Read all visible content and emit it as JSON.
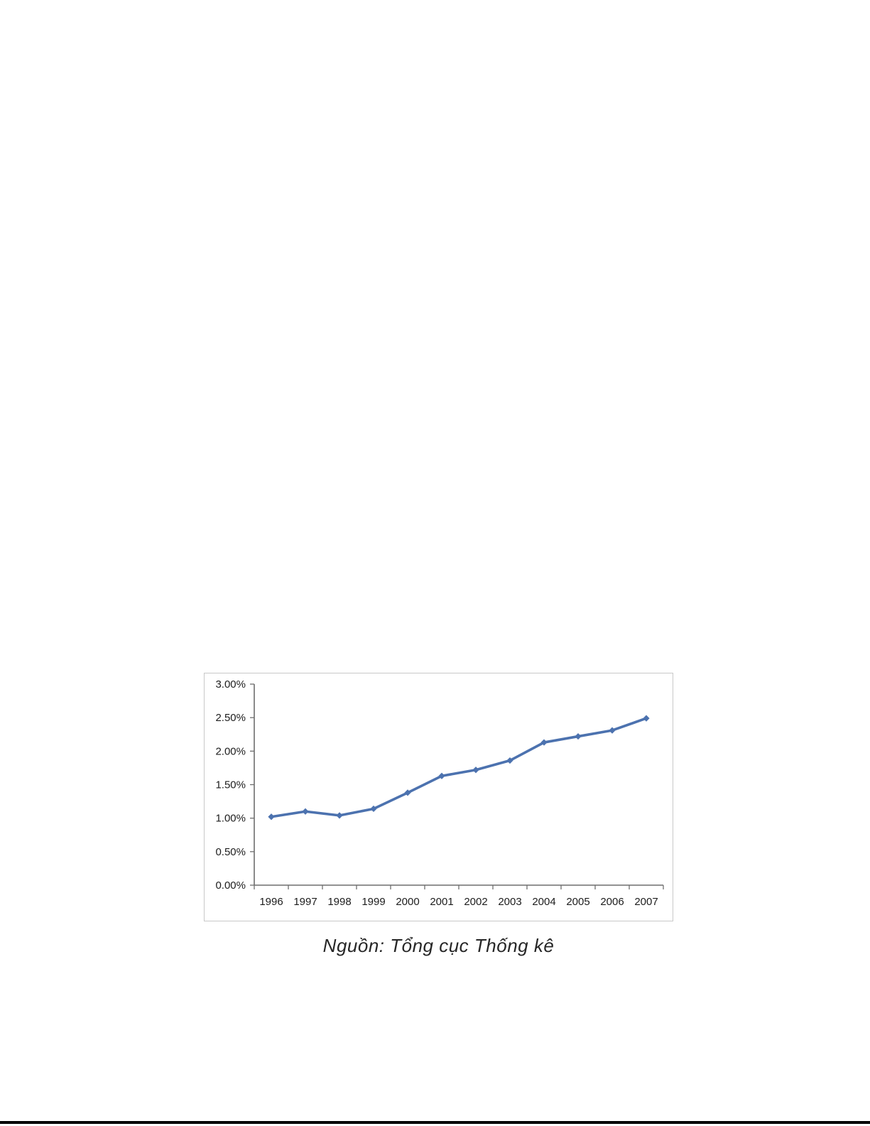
{
  "figure": {
    "caption": "Nguồn: Tổng cục Thống kê"
  },
  "chart_data": {
    "type": "line",
    "title": "",
    "xlabel": "",
    "ylabel": "",
    "unit": "%",
    "categories": [
      "1996",
      "1997",
      "1998",
      "1999",
      "2000",
      "2001",
      "2002",
      "2003",
      "2004",
      "2005",
      "2006",
      "2007"
    ],
    "values": [
      1.02,
      1.1,
      1.04,
      1.14,
      1.38,
      1.63,
      1.72,
      1.86,
      2.13,
      2.22,
      2.31,
      2.49
    ],
    "ylim": [
      0,
      3.0
    ],
    "y_tick_step": 0.5,
    "y_tick_labels": [
      "0.00%",
      "0.50%",
      "1.00%",
      "1.50%",
      "2.00%",
      "2.50%",
      "3.00%"
    ],
    "grid": false,
    "legend": "none",
    "marker": "diamond",
    "line_color": "#4c72af",
    "marker_color": "#4c72af",
    "axis_color": "#6e6e6e"
  },
  "colors": {
    "page_background": "#ffffff",
    "chart_border": "#c8c8c8",
    "caption_text": "#262626",
    "tick_text": "#1c1c1c",
    "bottom_rule": "#000000"
  }
}
